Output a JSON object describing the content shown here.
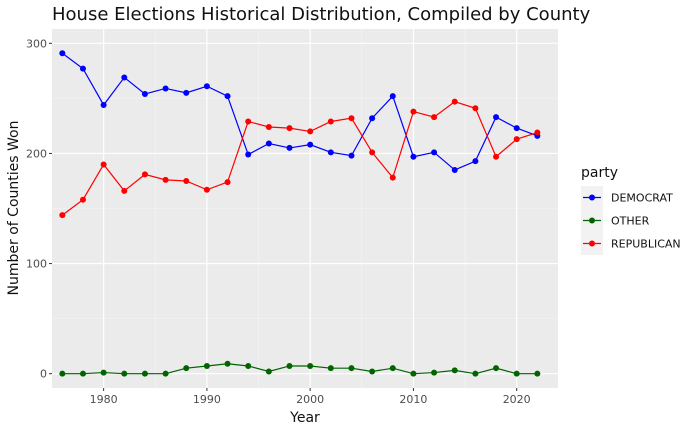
{
  "chart_data": {
    "type": "line",
    "title": "House Elections Historical Distribution, Compiled by County",
    "xlabel": "Year",
    "ylabel": "Number of Counties Won",
    "xlim": [
      1975,
      2024
    ],
    "ylim": [
      -13,
      313
    ],
    "x_ticks": [
      1980,
      1990,
      2000,
      2010,
      2020
    ],
    "y_ticks": [
      0,
      100,
      200,
      300
    ],
    "x_tick_labels": [
      "1980",
      "1990",
      "2000",
      "2010",
      "2020"
    ],
    "y_tick_labels": [
      "0",
      "100",
      "200",
      "300"
    ],
    "grid": true,
    "legend_position": "right",
    "legend_title": "party",
    "x": [
      1976,
      1978,
      1980,
      1982,
      1984,
      1986,
      1988,
      1990,
      1992,
      1994,
      1996,
      1998,
      2000,
      2002,
      2004,
      2006,
      2008,
      2010,
      2012,
      2014,
      2016,
      2018,
      2020,
      2022
    ],
    "series": [
      {
        "name": "DEMOCRAT",
        "color": "#0000ff",
        "values": [
          291,
          277,
          244,
          269,
          254,
          259,
          255,
          261,
          252,
          199,
          209,
          205,
          208,
          201,
          198,
          232,
          252,
          197,
          201,
          185,
          193,
          233,
          223,
          216
        ]
      },
      {
        "name": "OTHER",
        "color": "#006400",
        "values": [
          0,
          0,
          1,
          0,
          0,
          0,
          5,
          7,
          9,
          7,
          2,
          7,
          7,
          5,
          5,
          2,
          5,
          0,
          1,
          3,
          0,
          5,
          0,
          0
        ]
      },
      {
        "name": "REPUBLICAN",
        "color": "#ff0000",
        "values": [
          144,
          158,
          190,
          166,
          181,
          176,
          175,
          167,
          174,
          229,
          224,
          223,
          220,
          229,
          232,
          201,
          178,
          238,
          233,
          247,
          241,
          197,
          213,
          219
        ]
      }
    ]
  }
}
